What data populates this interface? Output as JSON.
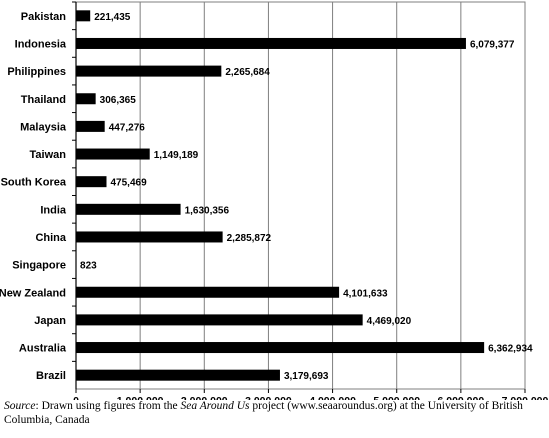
{
  "chart_data": {
    "type": "bar",
    "orientation": "horizontal",
    "categories": [
      "Pakistan",
      "Indonesia",
      "Philippines",
      "Thailand",
      "Malaysia",
      "Taiwan",
      "South Korea",
      "India",
      "China",
      "Singapore",
      "New Zealand",
      "Japan",
      "Australia",
      "Brazil"
    ],
    "values": [
      221435,
      6079377,
      2265684,
      306365,
      447276,
      1149189,
      475469,
      1630356,
      2285872,
      823,
      4101633,
      4469020,
      6362934,
      3179693
    ],
    "value_labels": [
      "221,435",
      "6,079,377",
      "2,265,684",
      "306,365",
      "447,276",
      "1,149,189",
      "475,469",
      "1,630,356",
      "2,285,872",
      "823",
      "4,101,633",
      "4,469,020",
      "6,362,934",
      "3,179,693"
    ],
    "x_ticks": [
      "0",
      "1,000,000",
      "2,000,000",
      "3,000,000",
      "4,000,000",
      "5,000,000",
      "6,000,000",
      "7,000,000"
    ],
    "xlim": [
      0,
      7000000
    ],
    "grid": true,
    "bar_color": "#000000"
  },
  "caption": {
    "source_label": "Source",
    "text_1": ": Drawn using figures from the ",
    "italic_title": "Sea Around Us",
    "text_2": " project (www.seaaroundus.org) at the University of British Columbia, Canada"
  }
}
